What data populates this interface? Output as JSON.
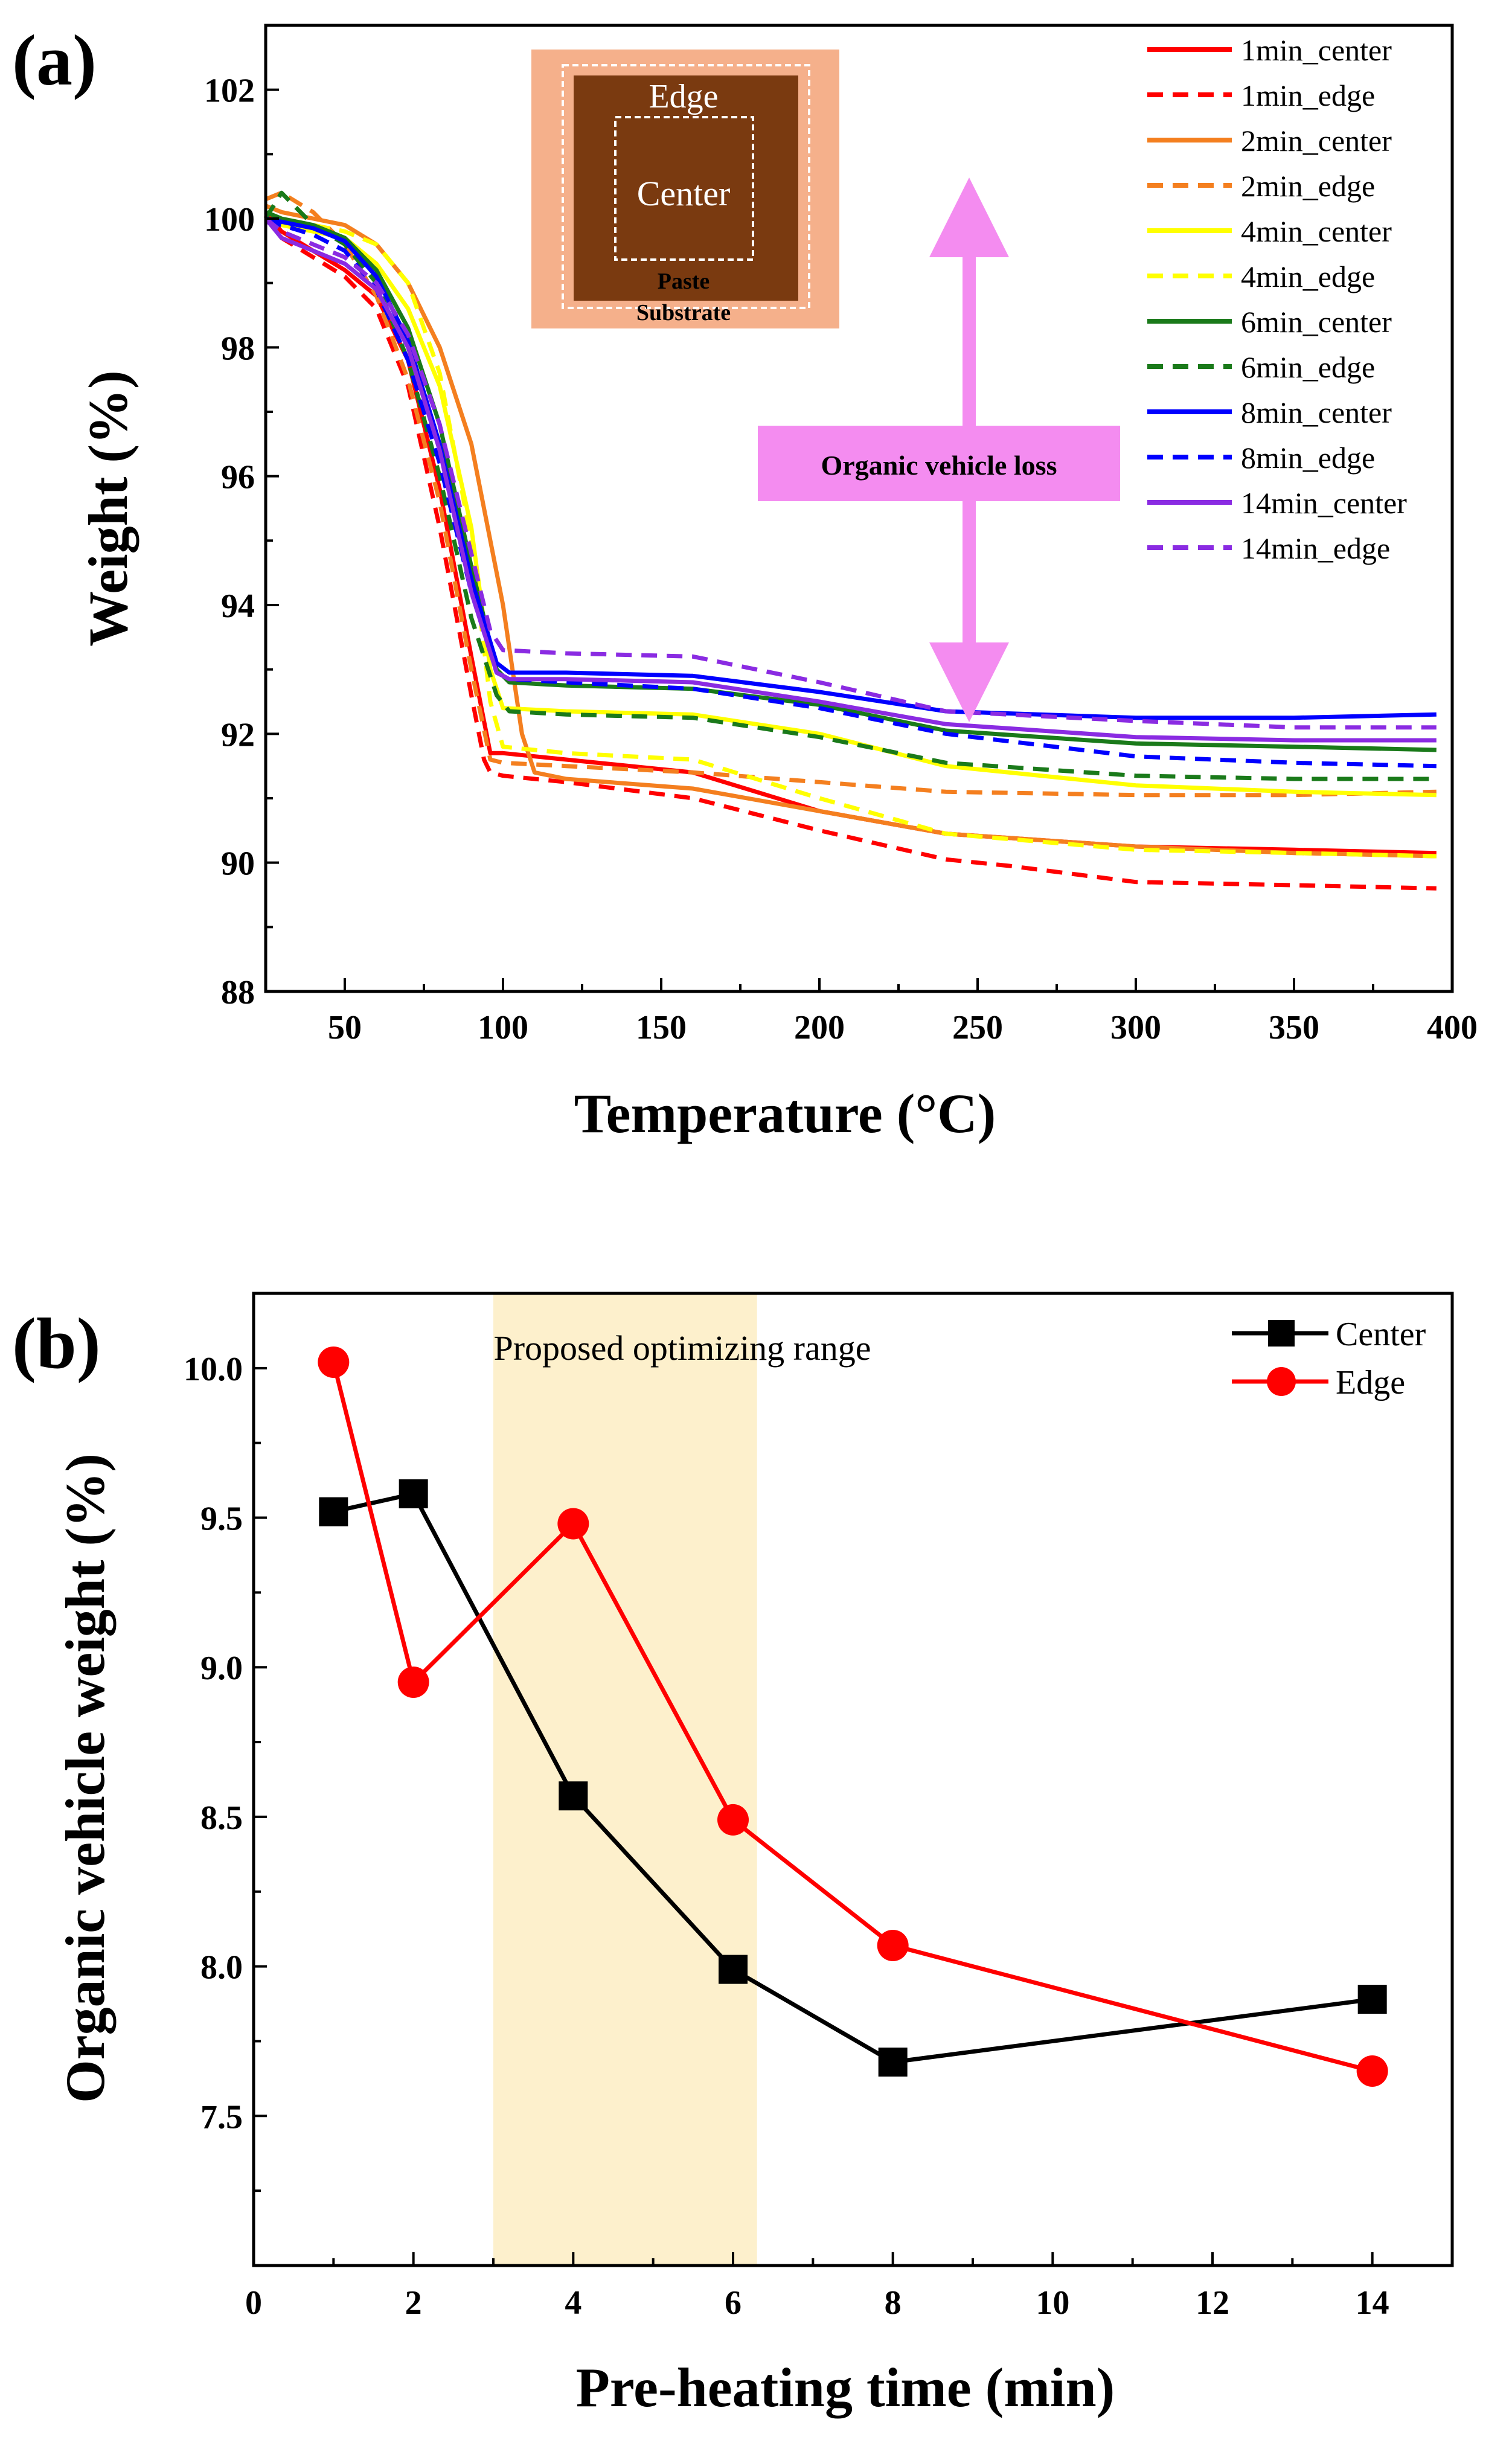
{
  "chart_data": [
    {
      "panel": "(a)",
      "type": "line",
      "xlabel": "Temperature (°C)",
      "ylabel": "Weight (%)",
      "xlim": [
        25,
        400
      ],
      "ylim": [
        88,
        103
      ],
      "xticks": [
        50,
        100,
        150,
        200,
        250,
        300,
        350,
        400
      ],
      "yticks": [
        88,
        90,
        92,
        94,
        96,
        98,
        100,
        102
      ],
      "legend_position": "top-right",
      "annotation": "Organic vehicle loss",
      "inset": {
        "edge_label": "Edge",
        "center_label": "Center",
        "paste_label": "Paste",
        "substrate_label": "Substrate"
      },
      "series": [
        {
          "name": "1min_center",
          "color": "#ff0000",
          "dash": false,
          "x": [
            25,
            30,
            40,
            50,
            60,
            70,
            80,
            90,
            96,
            100,
            120,
            160,
            200,
            240,
            300,
            350,
            395
          ],
          "y": [
            100.1,
            99.8,
            99.5,
            99.2,
            98.8,
            97.8,
            95.8,
            93.2,
            91.7,
            91.7,
            91.6,
            91.4,
            90.8,
            90.45,
            90.25,
            90.2,
            90.15
          ]
        },
        {
          "name": "1min_edge",
          "color": "#ff0000",
          "dash": true,
          "x": [
            25,
            30,
            40,
            50,
            60,
            70,
            80,
            90,
            94,
            96,
            100,
            120,
            160,
            200,
            240,
            260,
            300,
            350,
            395
          ],
          "y": [
            100.05,
            99.7,
            99.4,
            99.1,
            98.6,
            97.4,
            95.2,
            92.6,
            91.6,
            91.4,
            91.35,
            91.25,
            91.0,
            90.5,
            90.05,
            89.95,
            89.7,
            89.65,
            89.6
          ]
        },
        {
          "name": "2min_center",
          "color": "#f47f1f",
          "dash": false,
          "x": [
            25,
            30,
            40,
            50,
            60,
            70,
            80,
            90,
            100,
            106,
            110,
            120,
            160,
            200,
            240,
            300,
            350,
            395
          ],
          "y": [
            100.2,
            100.1,
            100.0,
            99.9,
            99.6,
            99.0,
            98.0,
            96.5,
            94.0,
            92.0,
            91.4,
            91.3,
            91.15,
            90.8,
            90.45,
            90.25,
            90.15,
            90.1
          ]
        },
        {
          "name": "2min_edge",
          "color": "#f47f1f",
          "dash": true,
          "x": [
            25,
            30,
            40,
            50,
            60,
            70,
            80,
            90,
            96,
            100,
            120,
            160,
            200,
            240,
            300,
            350,
            395
          ],
          "y": [
            100.3,
            100.4,
            100.1,
            99.6,
            98.8,
            97.5,
            95.6,
            93.0,
            91.6,
            91.55,
            91.5,
            91.4,
            91.25,
            91.1,
            91.05,
            91.05,
            91.1
          ]
        },
        {
          "name": "4min_center",
          "color": "#ffff00",
          "dash": false,
          "x": [
            25,
            30,
            40,
            50,
            60,
            70,
            80,
            90,
            96,
            100,
            120,
            160,
            200,
            240,
            300,
            350,
            395
          ],
          "y": [
            100.0,
            99.9,
            99.8,
            99.7,
            99.3,
            98.6,
            97.4,
            95.2,
            93.0,
            92.4,
            92.35,
            92.3,
            92.0,
            91.5,
            91.2,
            91.1,
            91.05
          ]
        },
        {
          "name": "4min_edge",
          "color": "#ffff00",
          "dash": true,
          "x": [
            25,
            30,
            40,
            50,
            60,
            70,
            80,
            90,
            96,
            100,
            120,
            160,
            200,
            240,
            300,
            350,
            395
          ],
          "y": [
            100.1,
            100.0,
            99.9,
            99.8,
            99.6,
            99.0,
            97.6,
            95.0,
            92.5,
            91.8,
            91.7,
            91.6,
            91.0,
            90.45,
            90.2,
            90.15,
            90.1
          ]
        },
        {
          "name": "6min_center",
          "color": "#1a7a1a",
          "dash": false,
          "x": [
            25,
            30,
            40,
            50,
            60,
            70,
            80,
            90,
            98,
            102,
            120,
            160,
            200,
            240,
            300,
            350,
            395
          ],
          "y": [
            100.1,
            100.0,
            99.9,
            99.7,
            99.2,
            98.3,
            96.8,
            94.6,
            93.0,
            92.8,
            92.75,
            92.7,
            92.45,
            92.05,
            91.85,
            91.8,
            91.75
          ]
        },
        {
          "name": "6min_edge",
          "color": "#1a7a1a",
          "dash": true,
          "x": [
            25,
            30,
            40,
            50,
            60,
            70,
            80,
            90,
            98,
            102,
            120,
            160,
            200,
            240,
            300,
            350,
            395
          ],
          "y": [
            100.0,
            100.4,
            99.9,
            99.6,
            99.0,
            97.8,
            96.0,
            93.8,
            92.6,
            92.35,
            92.3,
            92.25,
            91.95,
            91.55,
            91.35,
            91.3,
            91.3
          ]
        },
        {
          "name": "8min_center",
          "color": "#0000ff",
          "dash": false,
          "x": [
            25,
            30,
            40,
            50,
            60,
            70,
            80,
            90,
            98,
            102,
            120,
            160,
            200,
            240,
            300,
            350,
            395
          ],
          "y": [
            100.0,
            99.95,
            99.85,
            99.65,
            99.1,
            98.1,
            96.5,
            94.4,
            93.1,
            92.95,
            92.95,
            92.9,
            92.65,
            92.35,
            92.25,
            92.25,
            92.3
          ]
        },
        {
          "name": "8min_edge",
          "color": "#0000ff",
          "dash": true,
          "x": [
            25,
            30,
            40,
            50,
            60,
            70,
            80,
            90,
            98,
            102,
            120,
            160,
            200,
            240,
            300,
            350,
            395
          ],
          "y": [
            99.95,
            99.9,
            99.75,
            99.5,
            98.9,
            97.8,
            96.2,
            94.2,
            92.95,
            92.85,
            92.8,
            92.7,
            92.4,
            92.0,
            91.65,
            91.55,
            91.5
          ]
        },
        {
          "name": "14min_center",
          "color": "#8a2be2",
          "dash": false,
          "x": [
            25,
            30,
            40,
            50,
            60,
            70,
            80,
            90,
            98,
            102,
            120,
            160,
            200,
            240,
            300,
            350,
            395
          ],
          "y": [
            100.0,
            99.7,
            99.5,
            99.3,
            98.9,
            98.0,
            96.4,
            94.2,
            92.95,
            92.85,
            92.85,
            92.8,
            92.5,
            92.15,
            91.95,
            91.9,
            91.9
          ]
        },
        {
          "name": "14min_edge",
          "color": "#8a2be2",
          "dash": true,
          "x": [
            25,
            30,
            40,
            50,
            60,
            70,
            80,
            90,
            96,
            100,
            120,
            160,
            200,
            240,
            300,
            350,
            395
          ],
          "y": [
            100.0,
            99.8,
            99.6,
            99.4,
            99.0,
            98.2,
            96.8,
            94.8,
            93.6,
            93.3,
            93.25,
            93.2,
            92.8,
            92.35,
            92.2,
            92.1,
            92.1
          ]
        }
      ]
    },
    {
      "panel": "(b)",
      "type": "line",
      "xlabel": "Pre-heating time (min)",
      "ylabel": "Organic vehicle weight (%)",
      "xlim": [
        0,
        15
      ],
      "ylim": [
        7.0,
        10.25
      ],
      "xticks": [
        0,
        2,
        4,
        6,
        8,
        10,
        12,
        14
      ],
      "yticks": [
        7.5,
        8.0,
        8.5,
        9.0,
        9.5,
        10.0
      ],
      "legend_position": "top-right",
      "shaded_range": {
        "label": "Proposed optimizing range",
        "x": [
          3.0,
          6.3
        ],
        "color": "#fdf0cc"
      },
      "series": [
        {
          "name": "Center",
          "color": "#000000",
          "marker": "square",
          "x": [
            1,
            2,
            4,
            6,
            8,
            14
          ],
          "y": [
            9.52,
            9.58,
            8.57,
            7.99,
            7.68,
            7.89
          ]
        },
        {
          "name": "Edge",
          "color": "#ff0000",
          "marker": "circle",
          "x": [
            1,
            2,
            4,
            6,
            8,
            14
          ],
          "y": [
            10.02,
            8.95,
            9.48,
            8.49,
            8.07,
            7.65
          ]
        }
      ]
    }
  ]
}
